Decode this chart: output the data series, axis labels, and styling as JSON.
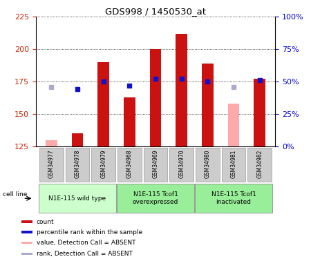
{
  "title": "GDS998 / 1450530_at",
  "samples": [
    "GSM34977",
    "GSM34978",
    "GSM34979",
    "GSM34968",
    "GSM34969",
    "GSM34970",
    "GSM34980",
    "GSM34981",
    "GSM34982"
  ],
  "groups": [
    {
      "label": "N1E-115 wild type",
      "indices": [
        0,
        1,
        2
      ],
      "color": "#ccffcc"
    },
    {
      "label": "N1E-115 Tcof1\noverexpressed",
      "indices": [
        3,
        4,
        5
      ],
      "color": "#99ee99"
    },
    {
      "label": "N1E-115 Tcof1\ninactivated",
      "indices": [
        6,
        7,
        8
      ],
      "color": "#99ee99"
    }
  ],
  "count_values": [
    130,
    135,
    190,
    163,
    200,
    212,
    189,
    158,
    177
  ],
  "count_absent": [
    true,
    false,
    false,
    false,
    false,
    false,
    false,
    true,
    false
  ],
  "rank_values": [
    46,
    44,
    50,
    47,
    52,
    52,
    50,
    46,
    51
  ],
  "rank_absent": [
    true,
    false,
    false,
    false,
    false,
    false,
    false,
    true,
    false
  ],
  "ylim_left": [
    125,
    225
  ],
  "ylim_right": [
    0,
    100
  ],
  "yticks_left": [
    125,
    150,
    175,
    200,
    225
  ],
  "yticks_right": [
    0,
    25,
    50,
    75,
    100
  ],
  "ytick_labels_right": [
    "0%",
    "25%",
    "50%",
    "75%",
    "100%"
  ],
  "bar_width": 0.45,
  "marker_size": 5,
  "color_red": "#cc1111",
  "color_pink": "#ffaaaa",
  "color_blue": "#1111cc",
  "color_lightblue": "#aaaacc",
  "color_axis_left": "#cc2200",
  "color_axis_right": "#0000cc",
  "bg_plot": "#ffffff",
  "bg_figure": "#ffffff",
  "legend_items": [
    {
      "color": "#cc1111",
      "label": "count"
    },
    {
      "color": "#1111cc",
      "label": "percentile rank within the sample"
    },
    {
      "color": "#ffaaaa",
      "label": "value, Detection Call = ABSENT"
    },
    {
      "color": "#aaaacc",
      "label": "rank, Detection Call = ABSENT"
    }
  ]
}
